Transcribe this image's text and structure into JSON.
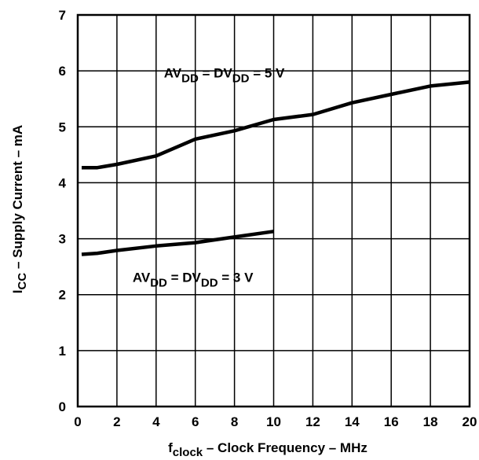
{
  "chart_data": {
    "type": "line",
    "title": "",
    "xlabel": {
      "main": "f",
      "sub": "clock",
      "rest": " – Clock Frequency – MHz"
    },
    "ylabel": {
      "main": "I",
      "sub": "CC",
      "rest": " – Supply Current – mA"
    },
    "xlim": [
      0,
      20
    ],
    "ylim": [
      0,
      7
    ],
    "xticks": [
      0,
      2,
      4,
      6,
      8,
      10,
      12,
      14,
      16,
      18,
      20
    ],
    "yticks": [
      0,
      1,
      2,
      3,
      4,
      5,
      6,
      7
    ],
    "x_gridlines": [
      0,
      2,
      4,
      6,
      8,
      10,
      12,
      14,
      16,
      18,
      20
    ],
    "y_gridlines": [
      0,
      1,
      2,
      3,
      4,
      5,
      6,
      7
    ],
    "grid": true,
    "series": [
      {
        "x": [
          0.2,
          1,
          2,
          4,
          6,
          8,
          10,
          12,
          14,
          16,
          18,
          20
        ],
        "y": [
          4.27,
          4.27,
          4.33,
          4.48,
          4.78,
          4.93,
          5.13,
          5.22,
          5.43,
          5.58,
          5.73,
          5.8
        ]
      },
      {
        "x": [
          0.2,
          1,
          2,
          4,
          6,
          8,
          10
        ],
        "y": [
          2.72,
          2.74,
          2.79,
          2.87,
          2.93,
          3.03,
          3.13
        ]
      }
    ],
    "annotations": [
      {
        "parts": [
          {
            "t": "AV",
            "sub": false
          },
          {
            "t": "DD",
            "sub": true
          },
          {
            "t": " = DV",
            "sub": false
          },
          {
            "t": "DD",
            "sub": true
          },
          {
            "t": " = 5 V",
            "sub": false
          }
        ],
        "x": 4.4,
        "y": 5.88
      },
      {
        "parts": [
          {
            "t": "AV",
            "sub": false
          },
          {
            "t": "DD",
            "sub": true
          },
          {
            "t": " = DV",
            "sub": false
          },
          {
            "t": "DD",
            "sub": true
          },
          {
            "t": " = 3 V",
            "sub": false
          }
        ],
        "x": 2.8,
        "y": 2.23
      }
    ]
  }
}
